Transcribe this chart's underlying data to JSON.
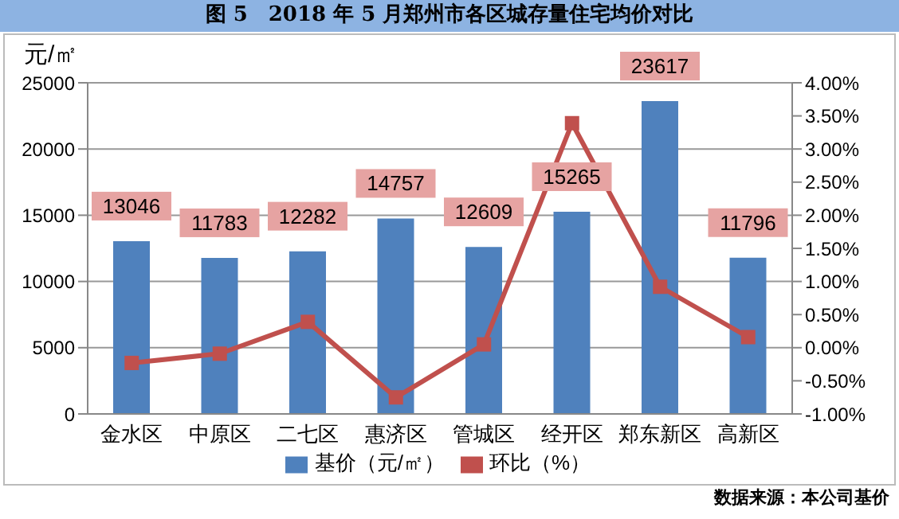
{
  "chart_data": {
    "type": "bar",
    "title": "图 5　2018 年 5 月郑州市各区城存量住宅均价对比",
    "ylabel": "元/㎡",
    "categories": [
      "金水区",
      "中原区",
      "二七区",
      "惠济区",
      "管城区",
      "经开区",
      "郑东新区",
      "高新区"
    ],
    "series": [
      {
        "name": "基价（元/㎡）",
        "color": "#4f81bd",
        "values": [
          13046,
          11783,
          12282,
          14757,
          12609,
          15265,
          23617,
          11796
        ],
        "value_labels": [
          "13046",
          "11783",
          "12282",
          "14757",
          "12609",
          "15265",
          "23617",
          "11796"
        ]
      },
      {
        "name": "环比（%）",
        "type": "line",
        "axis": "y2",
        "color": "#c0504d",
        "marker": "square",
        "values": [
          -0.23,
          -0.09,
          0.39,
          -0.75,
          0.05,
          3.39,
          0.92,
          0.16
        ]
      }
    ],
    "ylim": [
      0,
      25000
    ],
    "yticks": [
      0,
      5000,
      10000,
      15000,
      20000,
      25000
    ],
    "y2lim": [
      -1,
      4
    ],
    "y2ticks": [
      {
        "value": -1,
        "label": "-1.00%"
      },
      {
        "value": -0.5,
        "label": "-0.50%"
      },
      {
        "value": 0,
        "label": "0.00%"
      },
      {
        "value": 0.5,
        "label": "0.50%"
      },
      {
        "value": 1,
        "label": "1.00%"
      },
      {
        "value": 1.5,
        "label": "1.50%"
      },
      {
        "value": 2,
        "label": "2.00%"
      },
      {
        "value": 2.5,
        "label": "2.50%"
      },
      {
        "value": 3,
        "label": "3.00%"
      },
      {
        "value": 3.5,
        "label": "3.50%"
      },
      {
        "value": 4,
        "label": "4.00%"
      }
    ],
    "grid": "y",
    "legend": "bottom",
    "annotations": [
      "数据来源：本公司基价"
    ]
  }
}
